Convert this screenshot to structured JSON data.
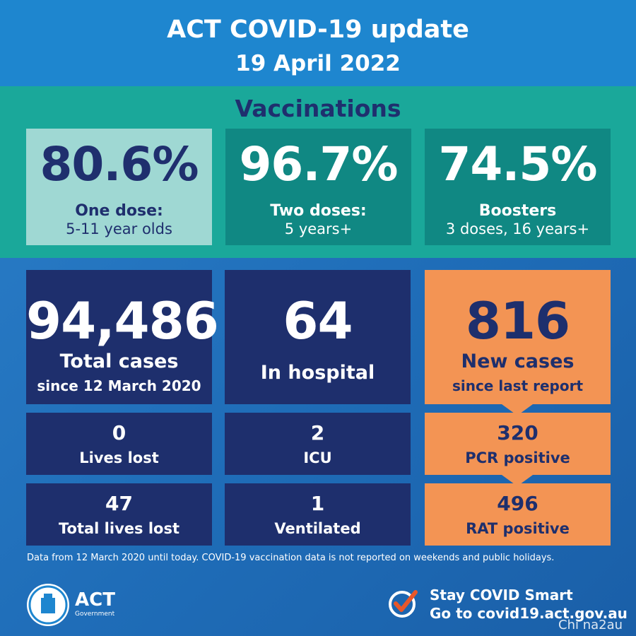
{
  "header": {
    "title": "ACT COVID-19 update",
    "date": "19 April 2022"
  },
  "vaccinations": {
    "title": "Vaccinations",
    "cards": [
      {
        "value": "80.6%",
        "label": "One dose:",
        "sublabel": "5-11 year olds"
      },
      {
        "value": "96.7%",
        "label": "Two doses:",
        "sublabel": "5 years+"
      },
      {
        "value": "74.5%",
        "label": "Boosters",
        "sublabel": "3 doses, 16 years+"
      }
    ]
  },
  "stats": {
    "total_cases": {
      "value": "94,486",
      "label": "Total cases",
      "sublabel": "since 12 March 2020"
    },
    "in_hospital": {
      "value": "64",
      "label": "In hospital"
    },
    "new_cases": {
      "value": "816",
      "label": "New cases",
      "sublabel": "since last report"
    },
    "lives_lost": {
      "value": "0",
      "label": "Lives lost"
    },
    "icu": {
      "value": "2",
      "label": "ICU"
    },
    "pcr": {
      "value": "320",
      "label": "PCR positive"
    },
    "total_lives_lost": {
      "value": "47",
      "label": "Total lives lost"
    },
    "ventilated": {
      "value": "1",
      "label": "Ventilated"
    },
    "rat": {
      "value": "496",
      "label": "RAT positive"
    }
  },
  "footnote": "Data from 12 March 2020 until today.  COVID-19 vaccination data is not reported on weekends and public holidays.",
  "footer": {
    "logo_text": "ACT",
    "logo_subtext": "Government",
    "cta_line1": "Stay COVID Smart",
    "cta_line2": "Go to covid19.act.gov.au",
    "watermark": "Chi na2au"
  },
  "colors": {
    "header_blue": "#1e86cf",
    "teal_band": "#1aa89a",
    "navy": "#1e2f6d",
    "orange": "#f39454",
    "light_teal": "#9fd8d3",
    "dark_teal": "#108883"
  }
}
